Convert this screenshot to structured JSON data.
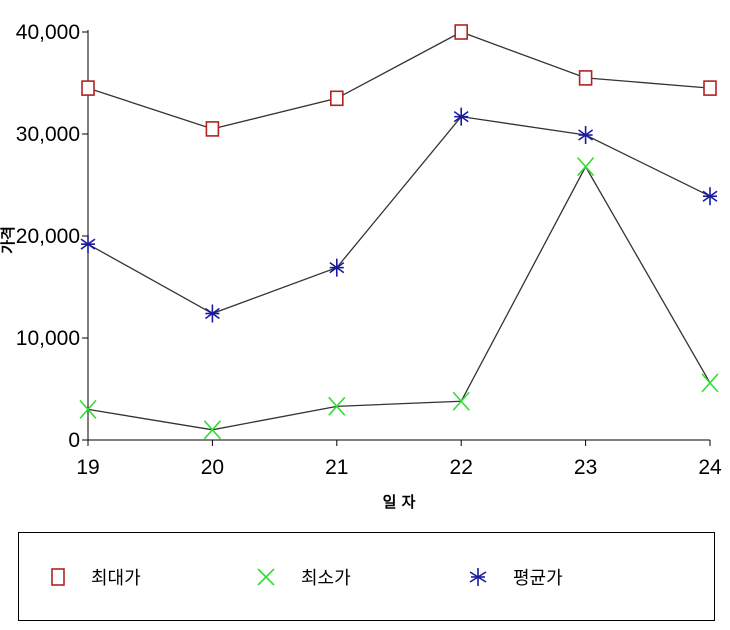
{
  "chart_data": {
    "type": "line",
    "x": [
      19,
      20,
      21,
      22,
      23,
      24
    ],
    "categories": [
      "19",
      "20",
      "21",
      "22",
      "23",
      "24"
    ],
    "xlabel": "일 자",
    "ylabel": "가격",
    "ylim": [
      0,
      40000
    ],
    "yticks": [
      0,
      10000,
      20000,
      30000,
      40000
    ],
    "ytick_labels": [
      "0",
      "10,000",
      "20,000",
      "30,000",
      "40,000"
    ],
    "grid": false,
    "legend_position": "bottom",
    "series": [
      {
        "name": "최대가",
        "marker": "square",
        "color": "#b22222",
        "values": [
          34500,
          30500,
          33500,
          40000,
          35500,
          34500
        ]
      },
      {
        "name": "최소가",
        "marker": "x",
        "color": "#33dd33",
        "values": [
          3000,
          1000,
          3300,
          3800,
          26800,
          5600
        ]
      },
      {
        "name": "평균가",
        "marker": "asterisk",
        "color": "#1a1aa0",
        "values": [
          19200,
          12400,
          16900,
          31700,
          29900,
          23900
        ]
      }
    ]
  }
}
